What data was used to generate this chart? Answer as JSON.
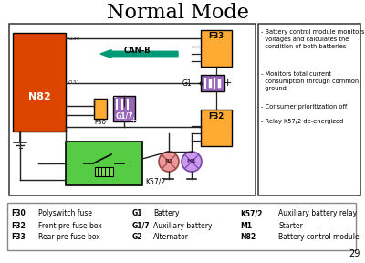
{
  "title": "Normal Mode",
  "title_fontsize": 16,
  "bg_color": "#eeeeee",
  "page_num": "29",
  "bullet_points": [
    "- Battery control module monitors\n  voltages and calculates the\n  condition of both batteries",
    "- Monitors total current\n  consumption through common\n  ground",
    "- Consumer prioritization off",
    "- Relay K57/2 de-energized"
  ],
  "legend_entries": [
    [
      "F30",
      "Polyswitch fuse",
      "G1",
      "Battery",
      "K57/2",
      "Auxiliary battery relay"
    ],
    [
      "F32",
      "Front pre-fuse box",
      "G1/7",
      "Auxiliary battery",
      "M1",
      "Starter"
    ],
    [
      "F33",
      "Rear pre-fuse box",
      "G2",
      "Alternator",
      "N82",
      "Battery control module"
    ]
  ],
  "colors": {
    "N82_fill": "#dd4400",
    "K57_fill": "#55cc44",
    "F30_fill": "#ffaa33",
    "F32_fill": "#ffaa33",
    "F33_fill": "#ffaa33",
    "G1_fill": "#9966bb",
    "G17_fill": "#9966bb",
    "canb_arrow": "#009977",
    "wire": "#222222",
    "diagram_border": "#444444",
    "legend_border": "#888888",
    "R2_fill": "#ee9999",
    "M1_fill": "#cc99ee",
    "white": "#ffffff"
  }
}
